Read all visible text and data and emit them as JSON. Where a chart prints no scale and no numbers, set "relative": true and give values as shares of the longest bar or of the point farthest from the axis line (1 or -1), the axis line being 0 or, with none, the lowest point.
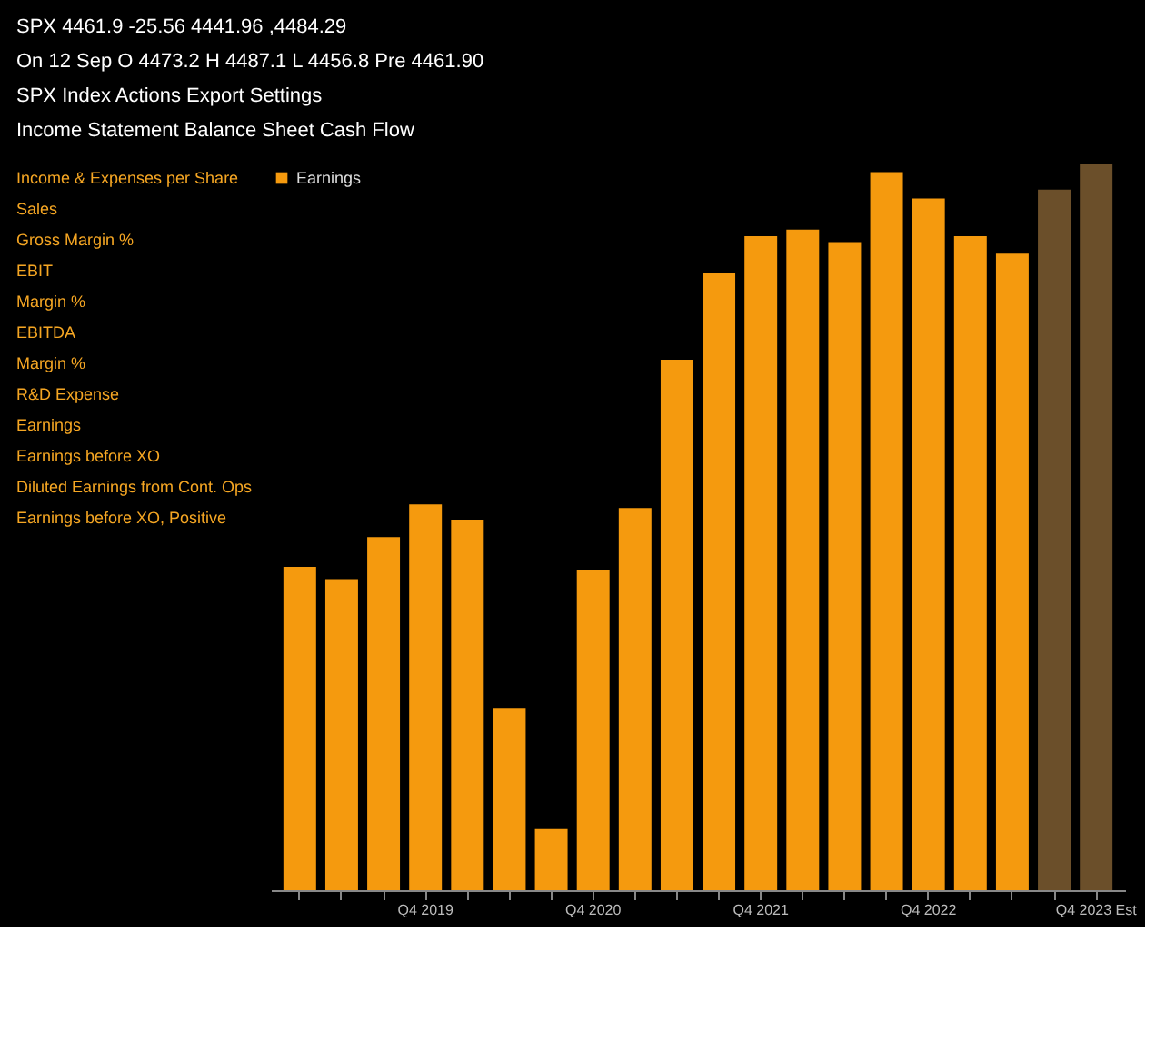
{
  "chart_data": {
    "type": "bar",
    "relative": true,
    "categories": [
      null,
      null,
      null,
      "Q4 2019",
      null,
      null,
      null,
      "Q4 2020",
      null,
      null,
      null,
      "Q4 2021",
      null,
      null,
      null,
      "Q4 2022",
      null,
      null,
      null,
      "Q4 2023 Est"
    ],
    "series": [
      {
        "name": "Earnings",
        "values": [
          0.445,
          0.428,
          0.486,
          0.531,
          0.51,
          0.251,
          0.084,
          0.44,
          0.526,
          0.73,
          0.849,
          0.9,
          0.909,
          0.892,
          0.988,
          0.952,
          0.9,
          0.876,
          0.964,
          1.0
        ],
        "color": "#f59a0e",
        "colors": [
          "#f59a0e",
          "#f59a0e",
          "#f59a0e",
          "#f59a0e",
          "#f59a0e",
          "#f59a0e",
          "#f59a0e",
          "#f59a0e",
          "#f59a0e",
          "#f59a0e",
          "#f59a0e",
          "#f59a0e",
          "#f59a0e",
          "#f59a0e",
          "#f59a0e",
          "#f59a0e",
          "#f59a0e",
          "#f59a0e",
          "#6b4f2a",
          "#6b4f2a"
        ]
      }
    ],
    "legend": "top left",
    "annotations": [
      "SPX  4461.9  -25.56  4441.96 ,4484.29",
      "On 12 Sep O 4473.2 H 4487.1 L 4456.8 Pre 4461.90",
      "SPX Index   Actions   Export   Settings",
      "Income Statement   Balance Sheet   Cash Flow",
      "Income & Expenses per Share",
      "Sales",
      "Gross Margin %",
      "EBIT",
      "Margin %",
      "EBITDA",
      "Margin %",
      "R&D Expense",
      "Earnings",
      "Earnings before XO",
      "Diluted Earnings from Cont. Ops",
      "Earnings before XO, Positive"
    ]
  }
}
